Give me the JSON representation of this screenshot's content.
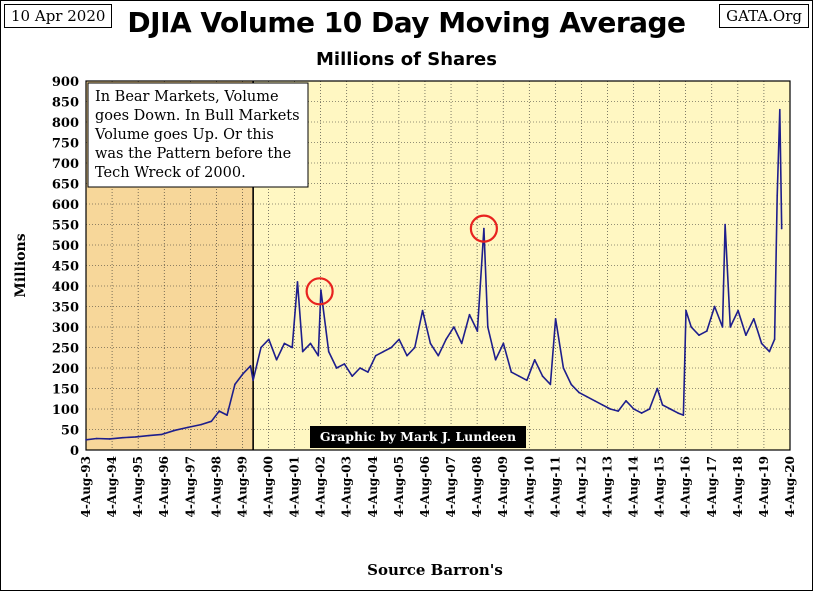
{
  "header": {
    "date": "10 Apr 2020",
    "site": "GATA.Org",
    "title": "DJIA Volume 10 Day Moving Average",
    "subtitle": "Millions of Shares",
    "source": "Source Barron's"
  },
  "annotation": {
    "lines": [
      "In Bear Markets, Volume",
      "goes Down.  In Bull Markets",
      "Volume goes Up.  Or this",
      "was  the Pattern before the",
      "Tech Wreck of 2000."
    ]
  },
  "credit": "Graphic by Mark J. Lundeen",
  "colors": {
    "plot_bg": "#FFF7C2",
    "shade_bg": "#F7D79A",
    "line": "#1E1E8C",
    "grid": "#2A2A2A",
    "circle": "#E8231F",
    "credit_bg": "#000000",
    "credit_fg": "#FFFFFF"
  },
  "chart_data": {
    "type": "line",
    "title": "DJIA Volume 10 Day Moving Average",
    "subtitle": "Millions of Shares",
    "xlabel": "Source Barron's",
    "ylabel": "Millions",
    "ylim": [
      0,
      900
    ],
    "yticks": [
      0,
      50,
      100,
      150,
      200,
      250,
      300,
      350,
      400,
      450,
      500,
      550,
      600,
      650,
      700,
      750,
      800,
      850,
      900
    ],
    "xlim": [
      1993.59,
      2020.59
    ],
    "xticks": [
      "4-Aug-93",
      "4-Aug-94",
      "4-Aug-95",
      "4-Aug-96",
      "4-Aug-97",
      "4-Aug-98",
      "4-Aug-99",
      "4-Aug-00",
      "4-Aug-01",
      "4-Aug-02",
      "4-Aug-03",
      "4-Aug-04",
      "4-Aug-05",
      "4-Aug-06",
      "4-Aug-07",
      "4-Aug-08",
      "4-Aug-09",
      "4-Aug-10",
      "4-Aug-11",
      "4-Aug-12",
      "4-Aug-13",
      "4-Aug-14",
      "4-Aug-15",
      "4-Aug-16",
      "4-Aug-17",
      "4-Aug-18",
      "4-Aug-19",
      "4-Aug-20"
    ],
    "grid": true,
    "shaded_region": [
      1993.59,
      2000.0
    ],
    "highlight_circles": [
      {
        "x": 2002.55,
        "y": 387
      },
      {
        "x": 2008.85,
        "y": 540
      }
    ],
    "series": [
      {
        "x": [
          1993.59,
          1994.0,
          1994.5,
          1995.0,
          1995.5,
          1996.0,
          1996.5,
          1997.0,
          1997.5,
          1998.0,
          1998.4,
          1998.7,
          1999.0,
          1999.3,
          1999.6,
          1999.9,
          2000.0,
          2000.3,
          2000.6,
          2000.9,
          2001.2,
          2001.5,
          2001.7,
          2001.9,
          2002.2,
          2002.5,
          2002.6,
          2002.9,
          2003.2,
          2003.5,
          2003.8,
          2004.1,
          2004.4,
          2004.7,
          2005.0,
          2005.3,
          2005.6,
          2005.9,
          2006.2,
          2006.5,
          2006.8,
          2007.1,
          2007.4,
          2007.7,
          2008.0,
          2008.3,
          2008.6,
          2008.85,
          2009.0,
          2009.3,
          2009.6,
          2009.9,
          2010.2,
          2010.5,
          2010.8,
          2011.1,
          2011.4,
          2011.6,
          2011.9,
          2012.2,
          2012.5,
          2012.8,
          2013.1,
          2013.4,
          2013.7,
          2014.0,
          2014.3,
          2014.6,
          2014.9,
          2015.2,
          2015.5,
          2015.7,
          2016.0,
          2016.3,
          2016.5,
          2016.6,
          2016.8,
          2017.1,
          2017.4,
          2017.7,
          2018.0,
          2018.1,
          2018.3,
          2018.6,
          2018.9,
          2019.2,
          2019.5,
          2019.8,
          2020.0,
          2020.1,
          2020.2,
          2020.27
        ],
        "values": [
          25,
          28,
          27,
          30,
          32,
          35,
          38,
          48,
          55,
          62,
          70,
          95,
          85,
          160,
          185,
          205,
          170,
          250,
          270,
          220,
          260,
          250,
          410,
          240,
          260,
          230,
          390,
          240,
          200,
          210,
          180,
          200,
          190,
          230,
          240,
          250,
          270,
          230,
          250,
          340,
          260,
          230,
          270,
          300,
          260,
          330,
          290,
          540,
          300,
          220,
          260,
          190,
          180,
          170,
          220,
          180,
          160,
          320,
          200,
          160,
          140,
          130,
          120,
          110,
          100,
          95,
          120,
          100,
          90,
          100,
          150,
          110,
          100,
          90,
          85,
          340,
          300,
          280,
          290,
          350,
          300,
          550,
          300,
          340,
          280,
          320,
          260,
          240,
          270,
          620,
          830,
          540
        ]
      }
    ]
  }
}
